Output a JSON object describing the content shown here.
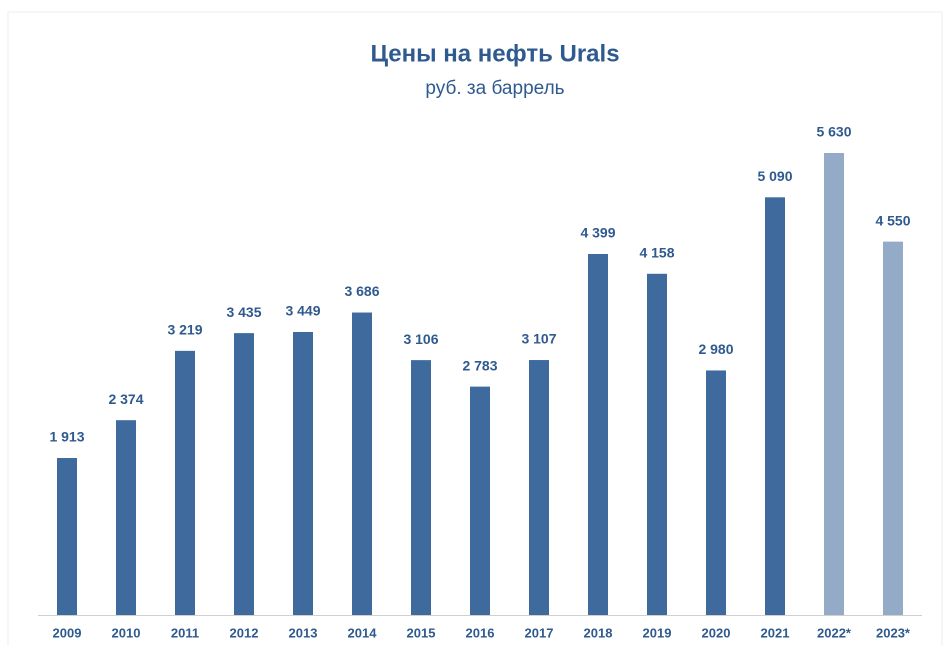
{
  "chart_data": {
    "type": "bar",
    "title": "Цены на нефть Urals",
    "subtitle": "руб. за баррель",
    "categories": [
      "2009",
      "2010",
      "2011",
      "2012",
      "2013",
      "2014",
      "2015",
      "2016",
      "2017",
      "2018",
      "2019",
      "2020",
      "2021",
      "2022*",
      "2023*"
    ],
    "values": [
      1913,
      2374,
      3219,
      3435,
      3449,
      3686,
      3106,
      2783,
      3107,
      4399,
      4158,
      2980,
      5090,
      5630,
      4550
    ],
    "value_labels": [
      "1 913",
      "2 374",
      "3 219",
      "3 435",
      "3 449",
      "3 686",
      "3 106",
      "2 783",
      "3 107",
      "4 399",
      "4 158",
      "2 980",
      "5 090",
      "5 630",
      "4 550"
    ],
    "colors": [
      "#3f6a9e",
      "#3f6a9e",
      "#3f6a9e",
      "#3f6a9e",
      "#3f6a9e",
      "#3f6a9e",
      "#3f6a9e",
      "#3f6a9e",
      "#3f6a9e",
      "#3f6a9e",
      "#3f6a9e",
      "#3f6a9e",
      "#3f6a9e",
      "#94abc8",
      "#94abc8"
    ]
  }
}
